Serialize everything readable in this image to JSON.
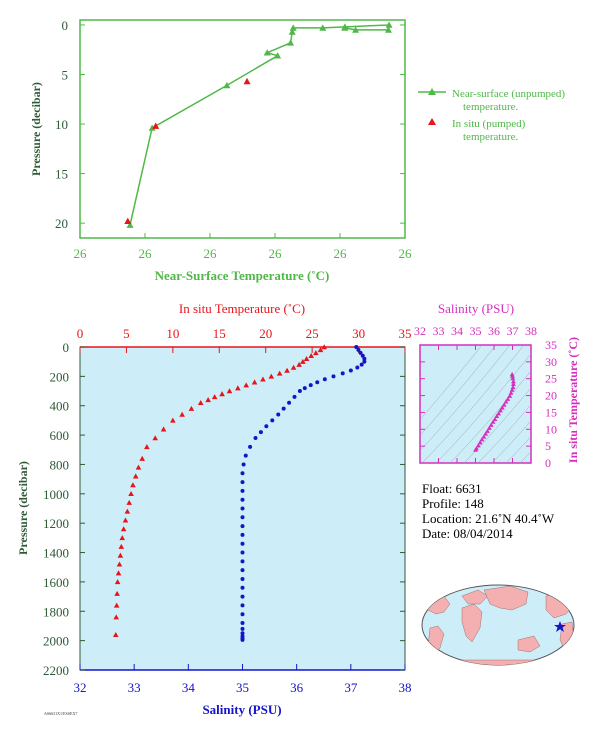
{
  "colors": {
    "green": "#4fb848",
    "red": "#e8141a",
    "blue": "#1414c8",
    "magenta": "#d62fbf",
    "panel_bg": "#cdeef8",
    "axis_dark": "#2e5a36",
    "land": "#f4b0b0",
    "ocean": "#cdeef8"
  },
  "chart_data": [
    {
      "type": "line",
      "xlabel": "Near-Surface Temperature (˚C)",
      "ylabel": "Pressure (decibar)",
      "xticks": [
        "26",
        "26",
        "26",
        "26",
        "26",
        "26"
      ],
      "yticks": [
        "0",
        "5",
        "10",
        "15",
        "20"
      ],
      "xlim": [
        25.6,
        26.6
      ],
      "ylim": [
        21.5,
        -0.5
      ],
      "legend": {
        "position": "right",
        "entries": [
          {
            "label_line1": "Near-surface (unpumped)",
            "label_line2": "temperature.",
            "color": "#4fb848",
            "marker": "triangle-line"
          },
          {
            "label_line1": "In situ (pumped)",
            "label_line2": "temperature.",
            "color": "#e8141a",
            "marker": "triangle"
          }
        ]
      },
      "series": [
        {
          "name": "Near-surface (unpumped) temperature.",
          "color": "#4fb848",
          "x": [
            25.754,
            25.822,
            26.052,
            26.208,
            26.176,
            26.248,
            26.253,
            26.256,
            26.347,
            26.551,
            26.549,
            26.448,
            26.415,
            26.415
          ],
          "y": [
            20.2,
            10.4,
            6.1,
            3.1,
            2.8,
            1.8,
            0.7,
            0.3,
            0.3,
            0.0,
            0.5,
            0.5,
            0.3,
            0.2
          ]
        },
        {
          "name": "In situ (pumped) temperature.",
          "color": "#e8141a",
          "x": [
            25.747,
            25.833,
            26.114
          ],
          "y": [
            19.8,
            10.2,
            5.7
          ]
        }
      ]
    },
    {
      "type": "scatter",
      "xlabel_top": "In situ Temperature (˚C)",
      "xlabel_bottom": "Salinity (PSU)",
      "ylabel": "Pressure (decibar)",
      "temp_ticks": [
        "0",
        "5",
        "10",
        "15",
        "20",
        "25",
        "30",
        "35"
      ],
      "sal_ticks": [
        "32",
        "33",
        "34",
        "35",
        "36",
        "37",
        "38"
      ],
      "pressure_ticks": [
        "0",
        "200",
        "400",
        "600",
        "800",
        "1000",
        "1200",
        "1400",
        "1600",
        "1800",
        "2000",
        "2200"
      ],
      "temp_lim": [
        0,
        35
      ],
      "sal_lim": [
        32,
        38
      ],
      "pressure_lim": [
        0,
        2200
      ],
      "temperature": {
        "color": "#e8141a",
        "values": [
          26.3,
          25.9,
          25.4,
          24.9,
          24.4,
          24.0,
          23.6,
          23.0,
          22.3,
          21.5,
          20.6,
          19.7,
          18.8,
          17.9,
          17.0,
          16.1,
          15.3,
          14.5,
          13.8,
          13.0,
          12.0,
          11.0,
          10.0,
          9.0,
          8.1,
          7.2,
          6.7,
          6.3,
          6.0,
          5.7,
          5.5,
          5.3,
          5.1,
          4.9,
          4.7,
          4.55,
          4.45,
          4.35,
          4.25,
          4.15,
          4.05,
          4.0,
          3.95,
          3.9,
          3.85
        ],
        "pressure": [
          0,
          20,
          40,
          60,
          80,
          100,
          120,
          140,
          160,
          180,
          200,
          220,
          240,
          260,
          280,
          300,
          320,
          340,
          360,
          380,
          420,
          460,
          500,
          560,
          620,
          680,
          760,
          820,
          880,
          940,
          1000,
          1060,
          1120,
          1180,
          1240,
          1300,
          1360,
          1420,
          1480,
          1540,
          1600,
          1680,
          1760,
          1840,
          1960
        ]
      },
      "salinity": {
        "color": "#1414c8",
        "values": [
          37.1,
          37.14,
          37.18,
          37.22,
          37.25,
          37.25,
          37.2,
          37.12,
          37.0,
          36.85,
          36.68,
          36.52,
          36.38,
          36.26,
          36.15,
          36.06,
          35.96,
          35.86,
          35.76,
          35.66,
          35.55,
          35.44,
          35.34,
          35.24,
          35.14,
          35.06,
          35.02,
          35.0,
          35.0,
          35.0,
          35.0,
          35.0,
          35.0,
          35.0,
          35.0,
          35.0,
          35.0,
          35.0,
          35.0,
          35.0,
          35.0,
          35.0,
          35.0,
          35.0,
          35.0,
          35.0,
          35.0,
          35.0,
          35.0,
          35.0
        ],
        "pressure": [
          0,
          20,
          40,
          60,
          80,
          100,
          120,
          140,
          160,
          180,
          200,
          220,
          240,
          260,
          280,
          300,
          340,
          380,
          420,
          460,
          500,
          540,
          580,
          620,
          680,
          740,
          800,
          860,
          920,
          980,
          1040,
          1100,
          1160,
          1220,
          1280,
          1340,
          1400,
          1460,
          1520,
          1580,
          1640,
          1700,
          1760,
          1820,
          1880,
          1920,
          1950,
          1970,
          1985,
          1995
        ]
      }
    },
    {
      "type": "scatter",
      "title": "Salinity (PSU)",
      "ylabel": "In situ Temperature (˚C)",
      "xticks": [
        "32",
        "33",
        "34",
        "35",
        "36",
        "37",
        "38"
      ],
      "yticks": [
        "0",
        "5",
        "10",
        "15",
        "20",
        "25",
        "30",
        "35"
      ],
      "xlim": [
        32,
        38
      ],
      "ylim": [
        0,
        35
      ],
      "color": "#d62fbf",
      "x": [
        35.0,
        35.05,
        35.15,
        35.25,
        35.35,
        35.45,
        35.55,
        35.65,
        35.75,
        35.85,
        35.95,
        36.05,
        36.15,
        36.25,
        36.35,
        36.45,
        36.55,
        36.65,
        36.75,
        36.85,
        36.92,
        36.98,
        37.03,
        37.05,
        37.05,
        37.02,
        37.0,
        36.98
      ],
      "y": [
        3.9,
        4.3,
        5.2,
        6.1,
        7.0,
        7.8,
        8.7,
        9.5,
        10.4,
        11.3,
        12.2,
        13.0,
        13.9,
        14.7,
        15.6,
        16.4,
        17.3,
        18.2,
        19.0,
        19.9,
        20.8,
        21.7,
        22.5,
        23.4,
        24.2,
        25.1,
        25.8,
        26.3
      ]
    }
  ],
  "info": {
    "float": "Float:  6631",
    "profile": "Profile:  148",
    "location": "Location:  21.6˚N  40.4˚W",
    "date": "Date:  08/04/2014"
  },
  "footer_code": "AS6631X1/ESSEX7"
}
